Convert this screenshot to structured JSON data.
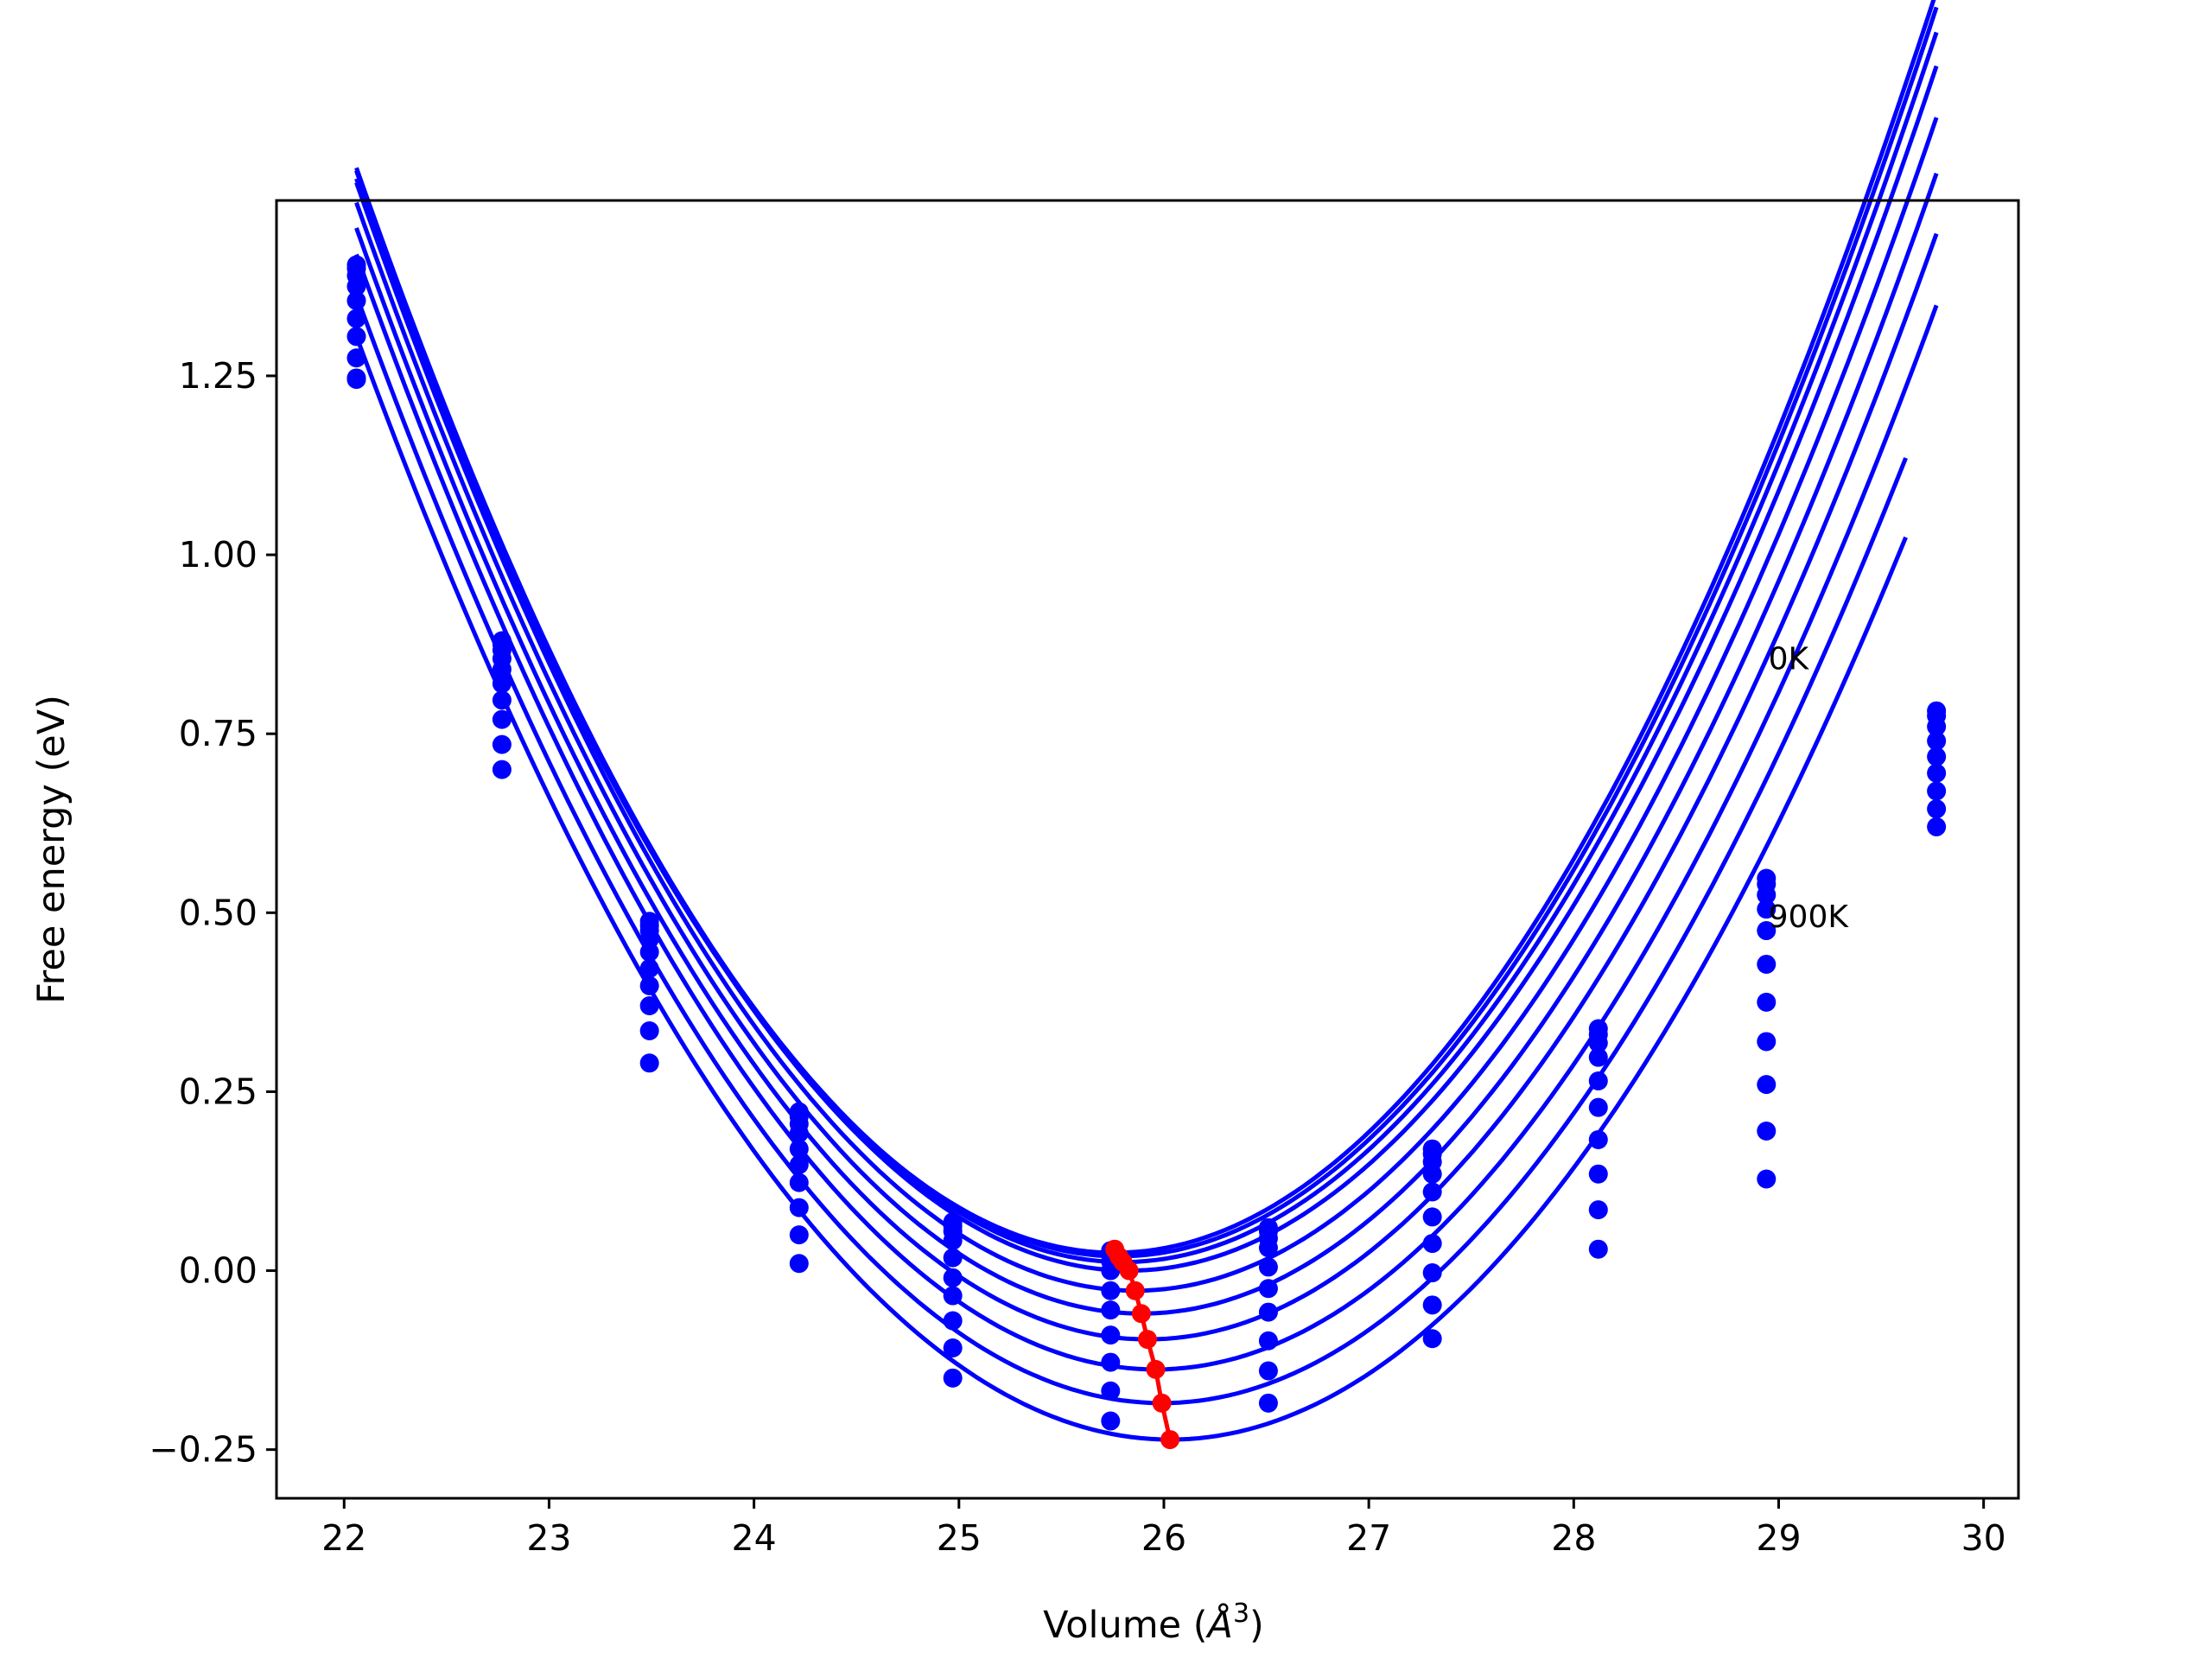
{
  "chart_data": {
    "type": "line",
    "title": "",
    "xlabel": "Volume (",
    "xlabel_unit": "Å",
    "xlabel_exponent": "3",
    "xlabel_close": ")",
    "ylabel": "Free energy (eV)",
    "xlim": [
      21.67,
      30.17
    ],
    "ylim": [
      -0.318,
      1.495
    ],
    "xticks": [
      {
        "value": 22,
        "label": "22"
      },
      {
        "value": 23,
        "label": "23"
      },
      {
        "value": 24,
        "label": "24"
      },
      {
        "value": 25,
        "label": "25"
      },
      {
        "value": 26,
        "label": "26"
      },
      {
        "value": 27,
        "label": "27"
      },
      {
        "value": 28,
        "label": "28"
      },
      {
        "value": 29,
        "label": "29"
      },
      {
        "value": 30,
        "label": "30"
      }
    ],
    "yticks": [
      {
        "value": -0.25,
        "label": "−0.25"
      },
      {
        "value": 0.0,
        "label": "0.00"
      },
      {
        "value": 0.25,
        "label": "0.25"
      },
      {
        "value": 0.5,
        "label": "0.50"
      },
      {
        "value": 0.75,
        "label": "0.75"
      },
      {
        "value": 1.0,
        "label": "1.00"
      },
      {
        "value": 1.25,
        "label": "1.25"
      }
    ],
    "grid": false,
    "legend": "none",
    "colors": {
      "curves": "#0000ff",
      "minima": "#ff0000"
    },
    "annotations": [
      {
        "text": "0K",
        "x": 28.95,
        "y": 0.84
      },
      {
        "text": "900K",
        "x": 28.95,
        "y": 0.48
      }
    ],
    "volumes": [
      22.06,
      22.77,
      23.49,
      24.22,
      24.97,
      25.74,
      26.51,
      27.31,
      28.12,
      28.94,
      29.77
    ],
    "series": [
      {
        "fit": {
          "v0": 25.76,
          "e0": 0.025,
          "a": 0.1096
        },
        "x_range": [
          22.06,
          29.77
        ],
        "points": [
          1.405,
          0.88,
          0.488,
          0.222,
          0.068,
          0.028,
          0.06,
          0.17,
          0.338,
          0.548,
          0.782
        ]
      },
      {
        "fit": {
          "v0": 25.78,
          "e0": 0.02,
          "a": 0.1096
        },
        "x_range": [
          22.06,
          29.77
        ],
        "points": [
          1.4,
          0.875,
          0.482,
          0.215,
          0.062,
          0.022,
          0.055,
          0.163,
          0.33,
          0.54,
          0.775
        ]
      },
      {
        "fit": {
          "v0": 25.8,
          "e0": 0.012,
          "a": 0.109
        },
        "x_range": [
          22.06,
          29.77
        ],
        "points": [
          1.39,
          0.867,
          0.475,
          0.205,
          0.055,
          0.013,
          0.045,
          0.152,
          0.318,
          0.525,
          0.76
        ]
      },
      {
        "fit": {
          "v0": 25.83,
          "e0": 0.0,
          "a": 0.1084
        },
        "x_range": [
          22.06,
          29.77
        ],
        "points": [
          1.375,
          0.855,
          0.463,
          0.192,
          0.042,
          0.0,
          0.032,
          0.135,
          0.298,
          0.505,
          0.74
        ]
      },
      {
        "fit": {
          "v0": 25.86,
          "e0": -0.028,
          "a": 0.1072
        },
        "x_range": [
          22.06,
          29.77
        ],
        "points": [
          1.355,
          0.84,
          0.445,
          0.17,
          0.018,
          -0.028,
          0.005,
          0.11,
          0.265,
          0.475,
          0.718
        ]
      },
      {
        "fit": {
          "v0": 25.89,
          "e0": -0.06,
          "a": 0.1058
        },
        "x_range": [
          22.06,
          29.77
        ],
        "points": [
          1.33,
          0.82,
          0.422,
          0.148,
          -0.01,
          -0.055,
          -0.025,
          0.075,
          0.228,
          0.428,
          0.695
        ]
      },
      {
        "fit": {
          "v0": 25.92,
          "e0": -0.096,
          "a": 0.1042
        },
        "x_range": [
          22.06,
          29.77
        ],
        "points": [
          1.305,
          0.797,
          0.398,
          0.123,
          -0.035,
          -0.09,
          -0.058,
          0.038,
          0.183,
          0.375,
          0.67
        ]
      },
      {
        "fit": {
          "v0": 25.96,
          "e0": -0.138,
          "a": 0.1024
        },
        "x_range": [
          22.06,
          29.77
        ],
        "points": [
          1.275,
          0.77,
          0.37,
          0.088,
          -0.07,
          -0.128,
          -0.098,
          -0.003,
          0.135,
          0.32,
          0.645
        ]
      },
      {
        "fit": {
          "v0": 25.99,
          "e0": -0.185,
          "a": 0.1002
        },
        "x_range": [
          22.06,
          29.62
        ],
        "points": [
          1.247,
          0.735,
          0.335,
          0.05,
          -0.108,
          -0.168,
          -0.14,
          -0.048,
          0.085,
          0.26,
          0.62
        ]
      },
      {
        "fit": {
          "v0": 26.03,
          "e0": -0.236,
          "a": 0.0978
        },
        "x_range": [
          22.06,
          29.62
        ],
        "points": [
          1.245,
          0.7,
          0.29,
          0.01,
          -0.15,
          -0.21,
          -0.185,
          -0.095,
          0.03,
          0.195,
          null
        ]
      },
      {
        "fit": null,
        "x_range": null,
        "points": [
          null,
          null,
          null,
          null,
          null,
          null,
          null,
          null,
          null,
          0.128,
          null
        ]
      }
    ],
    "minima": [
      {
        "x": 25.76,
        "y": 0.03
      },
      {
        "x": 25.78,
        "y": 0.02
      },
      {
        "x": 25.8,
        "y": 0.012
      },
      {
        "x": 25.83,
        "y": 0.0
      },
      {
        "x": 25.86,
        "y": -0.028
      },
      {
        "x": 25.89,
        "y": -0.06
      },
      {
        "x": 25.92,
        "y": -0.096
      },
      {
        "x": 25.96,
        "y": -0.138
      },
      {
        "x": 25.99,
        "y": -0.185
      },
      {
        "x": 26.03,
        "y": -0.236
      }
    ]
  }
}
